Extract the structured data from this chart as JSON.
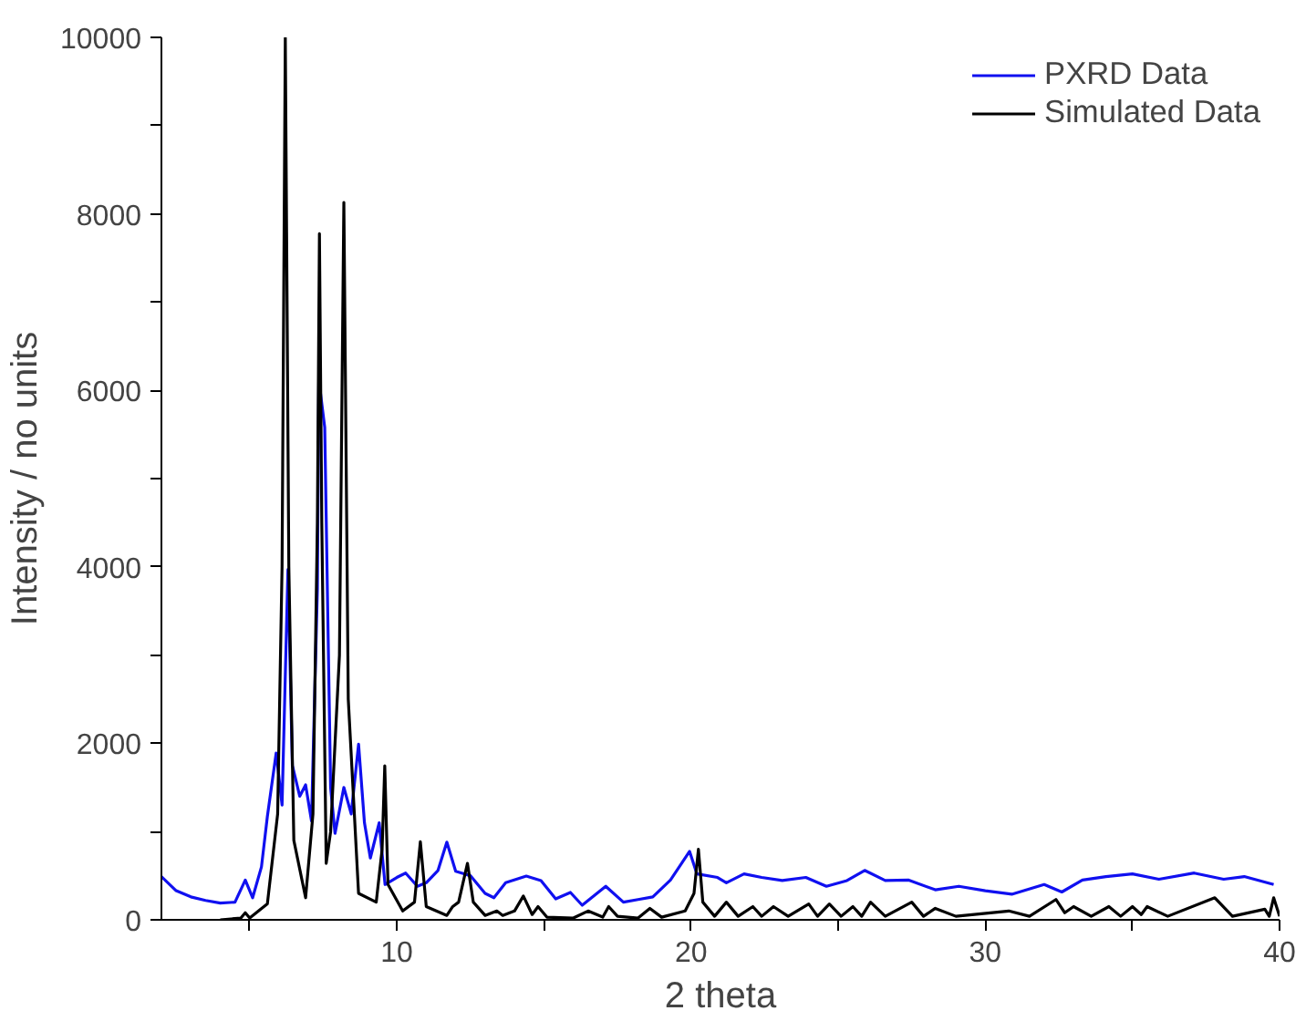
{
  "chart_data": {
    "type": "line",
    "xlabel": "2 theta",
    "ylabel": "Intensity / no units",
    "xlim": [
      2,
      40
    ],
    "ylim": [
      0,
      10000
    ],
    "xticks": [
      {
        "value": 5,
        "label": null
      },
      10,
      {
        "value": 15,
        "label": null
      },
      20,
      {
        "value": 25,
        "label": null
      },
      30,
      {
        "value": 35,
        "label": null
      },
      40
    ],
    "yticks": [
      0,
      {
        "value": 1000,
        "label": null
      },
      2000,
      {
        "value": 3000,
        "label": null
      },
      4000,
      {
        "value": 5000,
        "label": null
      },
      6000,
      {
        "value": 7000,
        "label": null
      },
      8000,
      {
        "value": 9000,
        "label": null
      },
      10000
    ],
    "grid": false,
    "legend": "top right",
    "marker": "none",
    "line_style": "solid",
    "series": [
      {
        "name": "PXRD Data",
        "color": "#1010f0",
        "x": [
          2,
          2.5,
          3,
          3.5,
          4,
          4.5,
          4.85,
          5.1,
          5.4,
          5.6,
          5.9,
          6.1,
          6.3,
          6.45,
          6.7,
          6.9,
          7.1,
          7.3,
          7.35,
          7.55,
          7.75,
          7.9,
          8.2,
          8.45,
          8.7,
          8.9,
          9.1,
          9.4,
          9.6,
          10.0,
          10.3,
          10.7,
          11.0,
          11.4,
          11.7,
          12.0,
          12.5,
          13.0,
          13.3,
          13.7,
          14.4,
          14.9,
          15.4,
          15.9,
          16.3,
          17.1,
          17.7,
          18.2,
          18.7,
          19.3,
          19.95,
          20.2,
          20.9,
          21.2,
          21.8,
          22.4,
          23.1,
          23.9,
          24.6,
          25.3,
          25.9,
          26.6,
          27.4,
          28.3,
          29.1,
          30.0,
          30.9,
          32.0,
          32.6,
          33.3,
          34.1,
          35.0,
          35.9,
          37.1,
          38.1,
          38.8,
          39.8
        ],
        "values": [
          490,
          330,
          260,
          220,
          190,
          200,
          450,
          250,
          600,
          1170,
          1890,
          1300,
          3970,
          1750,
          1400,
          1530,
          1120,
          3750,
          6120,
          5580,
          1500,
          980,
          1500,
          1200,
          1990,
          1100,
          700,
          1100,
          400,
          480,
          530,
          380,
          420,
          560,
          880,
          550,
          500,
          300,
          250,
          420,
          495,
          445,
          237,
          310,
          165,
          380,
          200,
          230,
          260,
          450,
          775,
          520,
          480,
          420,
          520,
          480,
          445,
          480,
          380,
          445,
          560,
          445,
          450,
          340,
          380,
          330,
          290,
          400,
          315,
          450,
          490,
          520,
          460,
          530,
          460,
          490,
          400
        ]
      },
      {
        "name": "Simulated Data",
        "color": "#000000",
        "x": [
          4,
          4.7,
          4.85,
          5.0,
          5.6,
          5.95,
          6.1,
          6.21,
          6.33,
          6.5,
          6.9,
          7.15,
          7.3,
          7.37,
          7.45,
          7.6,
          7.75,
          8.05,
          8.2,
          8.35,
          8.7,
          9.3,
          9.5,
          9.59,
          9.7,
          10.2,
          10.6,
          10.8,
          11.0,
          11.7,
          11.9,
          12.1,
          12.4,
          12.6,
          13.0,
          13.4,
          13.6,
          14.0,
          14.3,
          14.6,
          14.8,
          15.1,
          16.0,
          16.5,
          17.0,
          17.2,
          17.5,
          18.2,
          18.6,
          19.0,
          19.8,
          20.1,
          20.25,
          20.4,
          20.8,
          21.2,
          21.6,
          22.1,
          22.4,
          22.8,
          23.3,
          24.0,
          24.3,
          24.7,
          25.1,
          25.5,
          25.8,
          26.1,
          26.6,
          27.5,
          27.9,
          28.3,
          29.0,
          30.8,
          31.5,
          32.4,
          32.7,
          33.0,
          33.6,
          34.2,
          34.6,
          35.0,
          35.3,
          35.5,
          36.2,
          37.8,
          38.4,
          39.5,
          39.65,
          39.8,
          40
        ],
        "values": [
          0,
          20,
          80,
          20,
          180,
          1200,
          4000,
          10000,
          4000,
          900,
          250,
          1200,
          4500,
          7775,
          4500,
          640,
          1000,
          3000,
          8130,
          2500,
          300,
          200,
          800,
          1745,
          400,
          100,
          200,
          885,
          150,
          50,
          150,
          200,
          640,
          200,
          50,
          100,
          50,
          100,
          270,
          60,
          150,
          30,
          20,
          100,
          30,
          150,
          40,
          20,
          130,
          30,
          100,
          300,
          800,
          200,
          40,
          200,
          40,
          150,
          40,
          150,
          40,
          180,
          40,
          180,
          40,
          150,
          40,
          200,
          40,
          200,
          40,
          130,
          40,
          100,
          40,
          230,
          80,
          150,
          40,
          150,
          40,
          150,
          60,
          150,
          40,
          250,
          40,
          120,
          40,
          250,
          40
        ]
      }
    ]
  }
}
